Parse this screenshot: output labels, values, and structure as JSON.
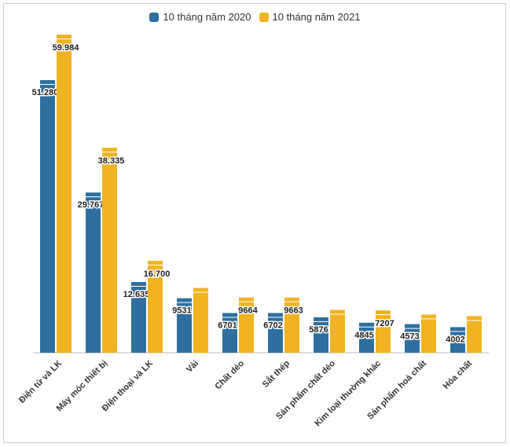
{
  "chart_data": {
    "type": "bar",
    "categories": [
      "Điện tử và LK",
      "Máy móc thiết bị",
      "Điện thoại và LK",
      "Vải",
      "Chất dẻo",
      "Sắt thép",
      "Sản phẩm chất dẻo",
      "Kim loại thường khác",
      "Sản phẩm hoá chất",
      "Hóa chất"
    ],
    "series": [
      {
        "name": "10 tháng năm 2020",
        "color": "#2f6f9f",
        "values": [
          51280,
          29767,
          12635,
          9531,
          6701,
          6702,
          5876,
          4845,
          4573,
          4002
        ],
        "labels": [
          "51.280",
          "29.767",
          "12.635",
          "9531",
          "6701",
          "6702",
          "5876",
          "4845",
          "4573",
          "4002"
        ]
      },
      {
        "name": "10 tháng năm 2021",
        "color": "#f0b323",
        "values": [
          59984,
          38335,
          16700,
          11500,
          9664,
          9663,
          7300,
          7207,
          6400,
          6100
        ],
        "labels": [
          "59.984",
          "38.335",
          "16.700",
          "",
          "9664",
          "9663",
          "",
          "7207",
          "",
          ""
        ]
      }
    ],
    "ylim": [
      0,
      60000
    ],
    "grid": false,
    "legend_position": "top-center"
  }
}
